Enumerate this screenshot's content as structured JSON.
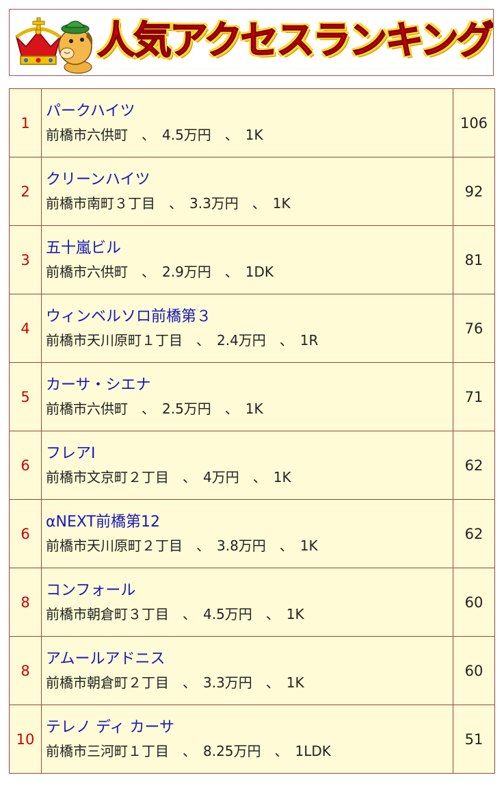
{
  "header": {
    "title": "人気アクセスランキング",
    "mascot_icon": "crown-mascot-icon"
  },
  "colors": {
    "title": "#e00000",
    "title_outline": "#ffd200",
    "rank": "#cc0000",
    "property_name": "#1818b8",
    "cell_background": "#fefbd6",
    "cell_border": "#8e4a3a"
  },
  "rankings": [
    {
      "rank": "1",
      "name": "パークハイツ",
      "details": "前橋市六供町　、　4.5万円　、　1K",
      "count": "106"
    },
    {
      "rank": "2",
      "name": "クリーンハイツ",
      "details": "前橋市南町３丁目　、　3.3万円　、　1K",
      "count": "92"
    },
    {
      "rank": "3",
      "name": "五十嵐ビル",
      "details": "前橋市六供町　、　2.9万円　、　1DK",
      "count": "81"
    },
    {
      "rank": "4",
      "name": "ウィンベルソロ前橋第３",
      "details": "前橋市天川原町１丁目　、　2.4万円　、　1R",
      "count": "76"
    },
    {
      "rank": "5",
      "name": "カーサ・シエナ",
      "details": "前橋市六供町　、　2.5万円　、　1K",
      "count": "71"
    },
    {
      "rank": "6",
      "name": "フレアⅠ",
      "details": "前橋市文京町２丁目　、　4万円　、　1K",
      "count": "62"
    },
    {
      "rank": "6",
      "name": "αNEXT前橋第12",
      "details": "前橋市天川原町２丁目　、　3.8万円　、　1K",
      "count": "62"
    },
    {
      "rank": "8",
      "name": "コンフォール",
      "details": "前橋市朝倉町３丁目　、　4.5万円　、　1K",
      "count": "60"
    },
    {
      "rank": "8",
      "name": "アムールアドニス",
      "details": "前橋市朝倉町２丁目　、　3.3万円　、　1K",
      "count": "60"
    },
    {
      "rank": "10",
      "name": "テレノ ディ カーサ",
      "details": "前橋市三河町１丁目　、　8.25万円　、　1LDK",
      "count": "51"
    }
  ]
}
